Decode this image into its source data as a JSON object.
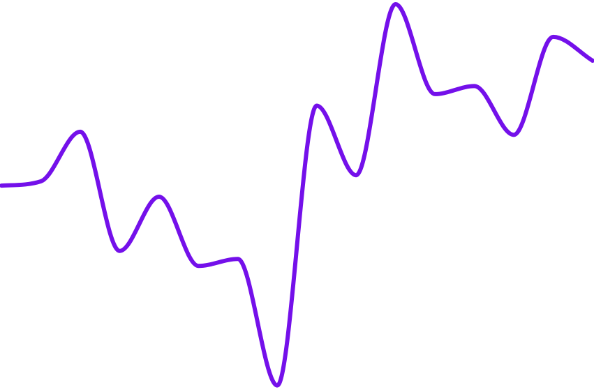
{
  "chart_data": {
    "type": "line",
    "title": "",
    "xlabel": "",
    "ylabel": "",
    "grid": false,
    "legend": "none",
    "x": [
      0,
      1,
      2,
      3,
      4,
      5,
      6,
      7,
      8,
      9,
      10,
      11,
      12,
      13,
      14,
      15
    ],
    "series": [
      {
        "color": "#7410ea",
        "values": [
          52.8,
          53.9,
          66.8,
          35.8,
          49.9,
          31.9,
          33.7,
          0.8,
          73.6,
          55.5,
          100,
          76.6,
          78.7,
          66.0,
          91.5,
          85.3
        ]
      }
    ],
    "ylim": [
      0,
      100
    ]
  }
}
